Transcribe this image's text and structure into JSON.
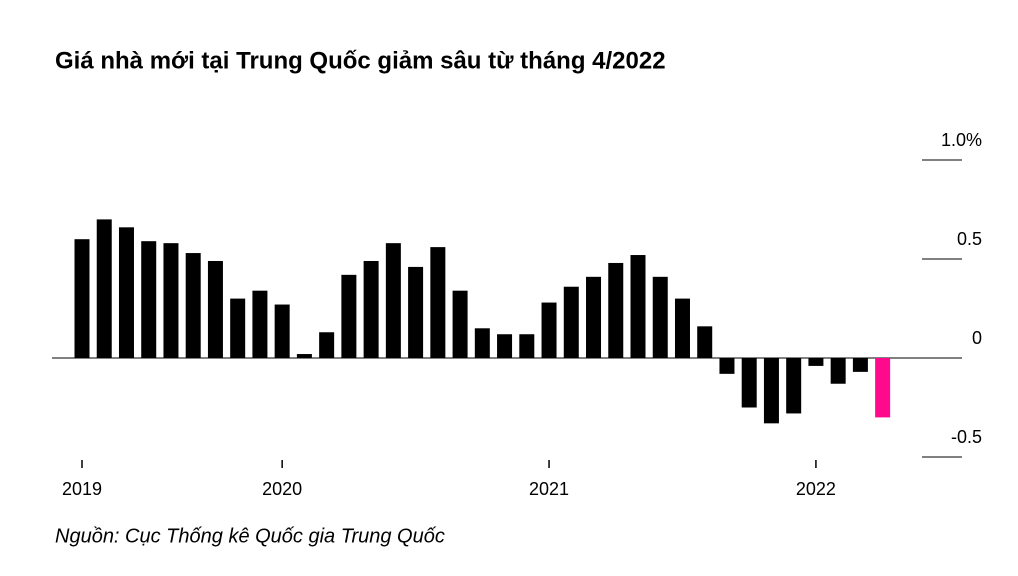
{
  "chart_data": {
    "type": "bar",
    "title": "Giá nhà mới tại Trung Quốc giảm sâu từ tháng 4/2022",
    "source": "Nguồn: Cục Thống kê Quốc gia Trung Quốc",
    "categories": [
      "2019",
      null,
      null,
      null,
      null,
      null,
      null,
      null,
      null,
      "2020",
      null,
      null,
      null,
      null,
      null,
      null,
      null,
      null,
      null,
      null,
      null,
      "2021",
      null,
      null,
      null,
      null,
      null,
      null,
      null,
      null,
      null,
      null,
      null,
      "2022",
      null,
      null,
      null
    ],
    "values": [
      0.6,
      0.7,
      0.66,
      0.59,
      0.58,
      0.53,
      0.49,
      0.3,
      0.34,
      0.27,
      0.02,
      0.13,
      0.42,
      0.49,
      0.58,
      0.46,
      0.56,
      0.34,
      0.15,
      0.12,
      0.12,
      0.28,
      0.36,
      0.41,
      0.48,
      0.52,
      0.41,
      0.3,
      0.16,
      -0.08,
      -0.25,
      -0.33,
      -0.28,
      -0.04,
      -0.13,
      -0.07,
      -0.3
    ],
    "colors": [
      "#000000",
      "#000000",
      "#000000",
      "#000000",
      "#000000",
      "#000000",
      "#000000",
      "#000000",
      "#000000",
      "#000000",
      "#000000",
      "#000000",
      "#000000",
      "#000000",
      "#000000",
      "#000000",
      "#000000",
      "#000000",
      "#000000",
      "#000000",
      "#000000",
      "#000000",
      "#000000",
      "#000000",
      "#000000",
      "#000000",
      "#000000",
      "#000000",
      "#000000",
      "#000000",
      "#000000",
      "#000000",
      "#000000",
      "#000000",
      "#000000",
      "#000000",
      "#ff0a8c"
    ],
    "ylim": [
      -0.5,
      1
    ],
    "yticks": [
      {
        "value": 1,
        "label": "1.0%"
      },
      0.5,
      0,
      -0.5
    ]
  }
}
